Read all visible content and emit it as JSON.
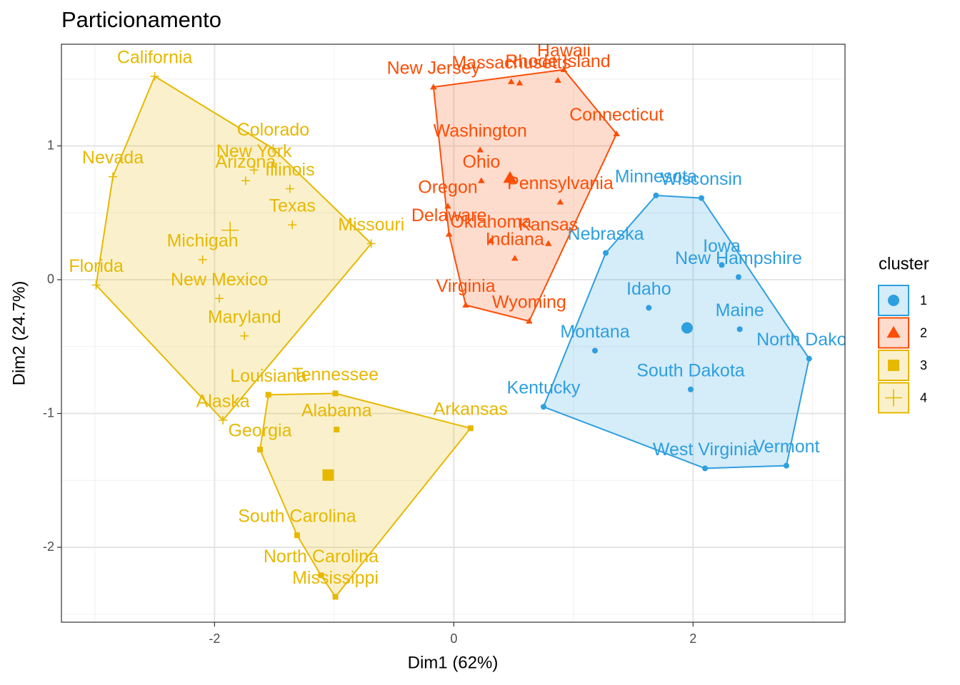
{
  "chart_data": {
    "type": "cluster",
    "title": "Particionamento",
    "x_label": "Dim1 (62%)",
    "y_label": "Dim2 (24.7%)",
    "xlim": [
      -3.28,
      3.27
    ],
    "ylim": [
      -2.56,
      1.76
    ],
    "xticks": [
      -2,
      0,
      2
    ],
    "yticks": [
      -2,
      -1,
      0,
      1
    ],
    "grid": true,
    "legend_title": "cluster",
    "legend_position": "right",
    "series": [
      {
        "name": "1",
        "color": "#2E9FDF",
        "shape": "circle",
        "labels": [
          "Minnesota",
          "Wisconsin",
          "Nebraska",
          "Iowa",
          "New Hampshire",
          "Idaho",
          "Maine",
          "Montana",
          "North Dakota",
          "South Dakota",
          "Kentucky",
          "West Virginia",
          "Vermont"
        ],
        "x": [
          1.69,
          2.07,
          1.27,
          2.24,
          2.38,
          1.63,
          2.39,
          1.18,
          2.97,
          1.98,
          0.75,
          2.1,
          2.78
        ],
        "y": [
          0.63,
          0.61,
          0.2,
          0.11,
          0.02,
          -0.21,
          -0.37,
          -0.53,
          -0.59,
          -0.82,
          -0.95,
          -1.41,
          -1.39
        ],
        "centroid": {
          "x": 1.95,
          "y": -0.36
        }
      },
      {
        "name": "2",
        "color": "#FC4E07",
        "shape": "triangle",
        "labels": [
          "New Jersey",
          "Massachusetts",
          null,
          "Rhode Island",
          "Hawaii",
          "Connecticut",
          "Washington",
          "Ohio",
          "Pennsylvania",
          "Oregon",
          "Delaware",
          "Oklahoma",
          "Kansas",
          "Indiana",
          "Virginia",
          "Wyoming"
        ],
        "x": [
          -0.17,
          0.48,
          0.55,
          0.87,
          0.92,
          1.36,
          0.22,
          0.23,
          0.89,
          -0.05,
          -0.04,
          0.31,
          0.79,
          0.51,
          0.1,
          0.63
        ],
        "y": [
          1.44,
          1.48,
          1.47,
          1.49,
          1.57,
          1.09,
          0.97,
          0.74,
          0.58,
          0.55,
          0.34,
          0.29,
          0.27,
          0.16,
          -0.19,
          -0.31
        ],
        "centroid": {
          "x": 0.47,
          "y": 0.76
        }
      },
      {
        "name": "3",
        "color": "#E7B800",
        "shape": "square",
        "labels": [
          "Tennessee",
          "Louisiana",
          "Alabama",
          "Arkansas",
          "Georgia",
          "South Carolina",
          "North Carolina",
          "Mississippi"
        ],
        "x": [
          -0.99,
          -1.55,
          -0.98,
          0.14,
          -1.62,
          -1.31,
          -1.11,
          -0.99
        ],
        "y": [
          -0.85,
          -0.86,
          -1.12,
          -1.11,
          -1.27,
          -1.91,
          -2.21,
          -2.37
        ],
        "centroid": {
          "x": -1.05,
          "y": -1.46
        }
      },
      {
        "name": "4",
        "color": "#E7B800",
        "shape": "plus",
        "labels": [
          "California",
          "Nevada",
          "Colorado",
          "New York",
          "Arizona",
          "Illinois",
          "Texas",
          "Missouri",
          "Michigan",
          "Florida",
          "New Mexico",
          "Maryland",
          "Alaska"
        ],
        "x": [
          -2.5,
          -2.85,
          -1.51,
          -1.67,
          -1.74,
          -1.37,
          -1.35,
          -0.69,
          -2.1,
          -2.99,
          -1.96,
          -1.75,
          -1.93
        ],
        "y": [
          1.52,
          0.77,
          0.98,
          0.82,
          0.74,
          0.68,
          0.41,
          0.27,
          0.15,
          -0.04,
          -0.14,
          -0.42,
          -1.05
        ],
        "centroid": {
          "x": -1.87,
          "y": 0.37
        }
      }
    ]
  }
}
